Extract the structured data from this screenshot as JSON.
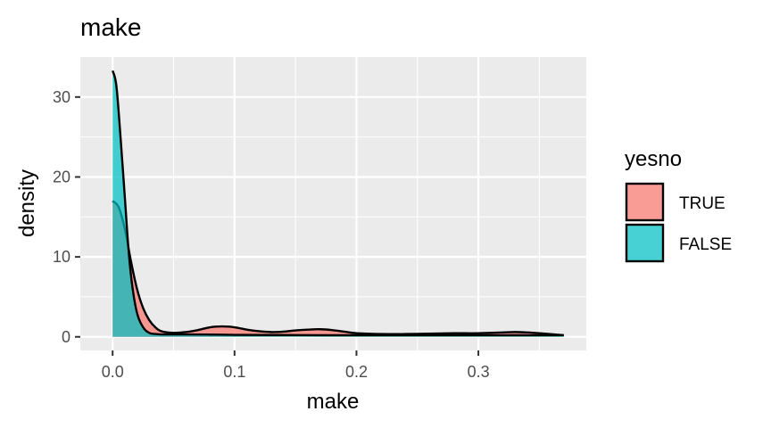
{
  "chart_data": {
    "type": "area",
    "title": "make",
    "xlabel": "make",
    "ylabel": "density",
    "xlim": [
      -0.0265,
      0.3885
    ],
    "ylim": [
      -1.7,
      35
    ],
    "x_ticks": [
      0.0,
      0.1,
      0.2,
      0.3
    ],
    "x_tick_labels": [
      "0.0",
      "0.1",
      "0.2",
      "0.3"
    ],
    "y_ticks": [
      0,
      10,
      20,
      30
    ],
    "y_tick_labels": [
      "0",
      "10",
      "20",
      "30"
    ],
    "grid": true,
    "legend": {
      "title": "yesno",
      "position": "right"
    },
    "series": [
      {
        "name": "TRUE",
        "color": "#F8766D",
        "x": [
          0.0,
          0.005,
          0.01,
          0.015,
          0.02,
          0.025,
          0.03,
          0.035,
          0.04,
          0.05,
          0.06,
          0.07,
          0.08,
          0.09,
          0.1,
          0.11,
          0.12,
          0.13,
          0.14,
          0.15,
          0.16,
          0.17,
          0.18,
          0.19,
          0.2,
          0.22,
          0.24,
          0.26,
          0.28,
          0.3,
          0.32,
          0.33,
          0.34,
          0.35,
          0.37
        ],
        "y": [
          17.0,
          16.2,
          13.5,
          9.5,
          6.0,
          3.6,
          2.1,
          1.2,
          0.7,
          0.5,
          0.6,
          0.85,
          1.2,
          1.3,
          1.2,
          0.9,
          0.7,
          0.6,
          0.65,
          0.8,
          0.9,
          0.95,
          0.85,
          0.65,
          0.45,
          0.35,
          0.35,
          0.4,
          0.45,
          0.45,
          0.55,
          0.6,
          0.55,
          0.45,
          0.2
        ]
      },
      {
        "name": "FALSE",
        "color": "#00BFC4",
        "x": [
          0.0,
          0.003,
          0.006,
          0.01,
          0.013,
          0.016,
          0.02,
          0.025,
          0.03,
          0.035,
          0.04,
          0.05,
          0.06,
          0.08,
          0.1,
          0.15,
          0.2,
          0.25,
          0.3,
          0.35,
          0.37
        ],
        "y": [
          33.3,
          31.5,
          26.0,
          17.5,
          11.0,
          6.5,
          3.0,
          1.2,
          0.5,
          0.35,
          0.3,
          0.3,
          0.3,
          0.28,
          0.25,
          0.22,
          0.2,
          0.2,
          0.2,
          0.2,
          0.2
        ]
      }
    ]
  },
  "colors": {
    "panel": "#EBEBEB",
    "grid_major": "#FFFFFF",
    "outline": "#000000"
  }
}
